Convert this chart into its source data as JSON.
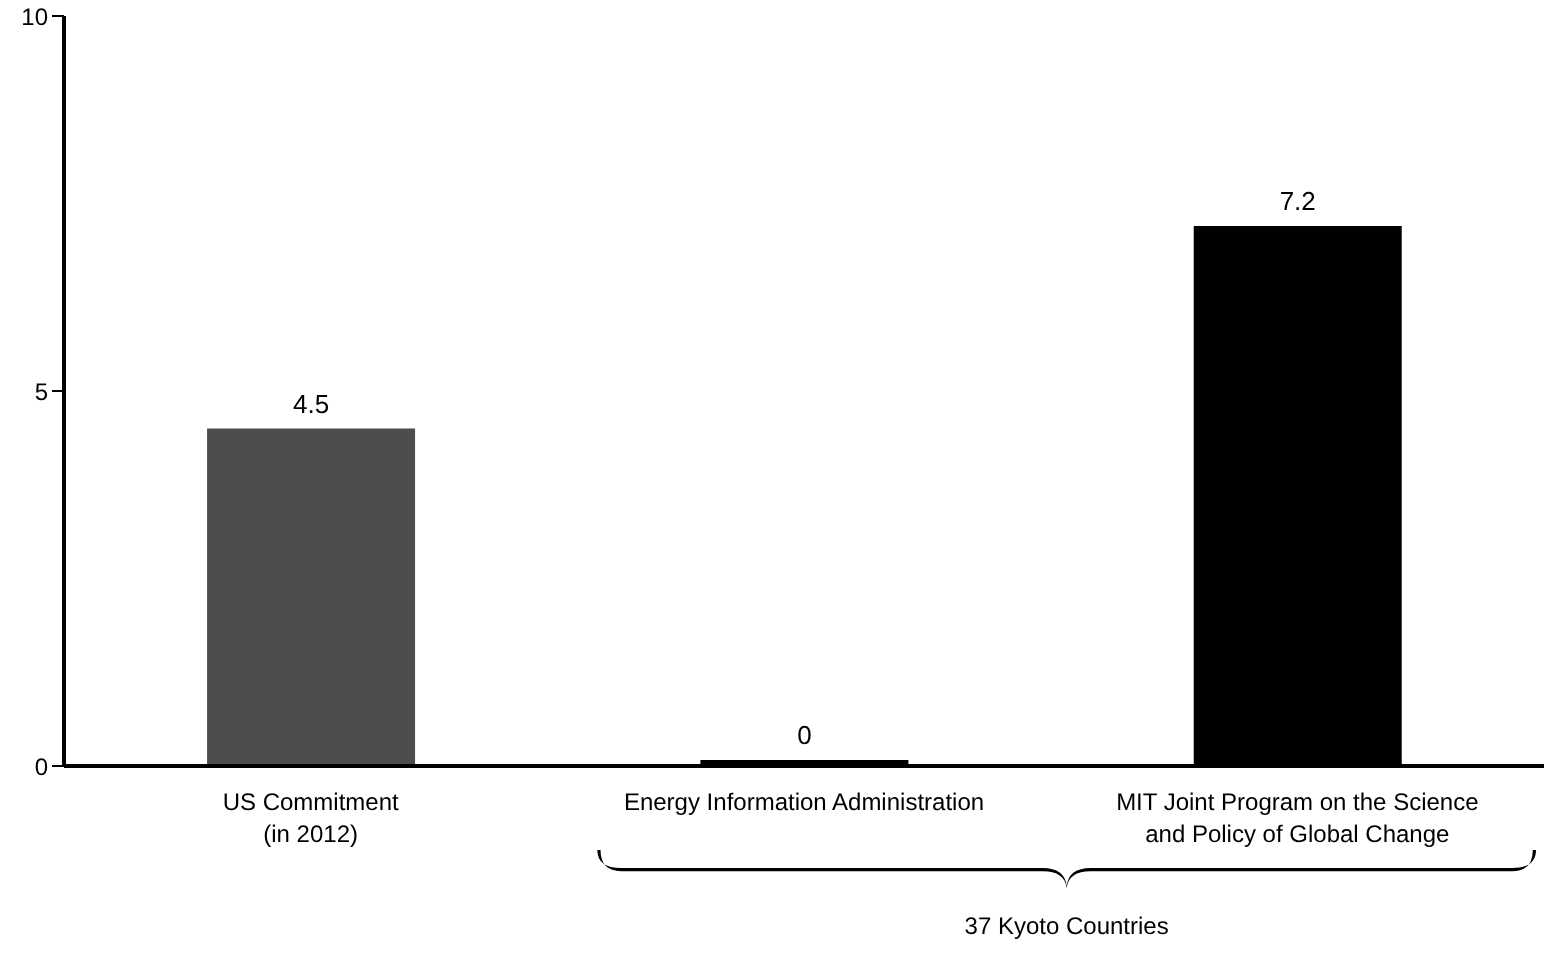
{
  "chart_data": {
    "type": "bar",
    "categories": [
      "US Commitment\n(in 2012)",
      "Energy Information Administration",
      "MIT Joint Program on the Science\nand Policy of Global Change"
    ],
    "values": [
      4.5,
      0,
      7.2
    ],
    "colors": [
      "#4d4d4d",
      "#000000",
      "#000000"
    ],
    "ylim": [
      0,
      10
    ],
    "yticks": [
      0,
      5,
      10
    ],
    "data_labels": true,
    "annotations": [
      "37 Kyoto Countries"
    ]
  }
}
